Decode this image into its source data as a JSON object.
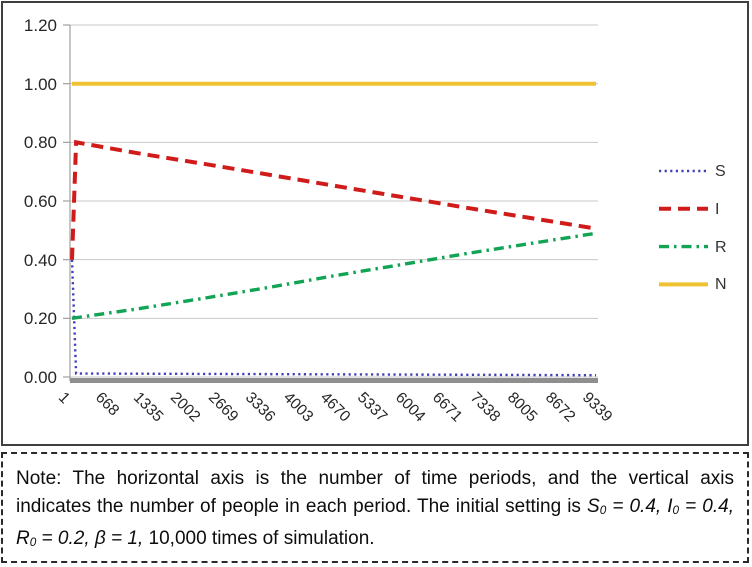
{
  "chart_data": {
    "type": "line",
    "title": "",
    "xlabel": "",
    "ylabel": "",
    "xlim": [
      1,
      10000
    ],
    "ylim": [
      0,
      1.2
    ],
    "grid": true,
    "legend_position": "right",
    "y_tick_labels": [
      "0.00",
      "0.20",
      "0.40",
      "0.60",
      "0.80",
      "1.00",
      "1.20"
    ],
    "x_tick_labels": [
      "1",
      "668",
      "1335",
      "2002",
      "2669",
      "3336",
      "4003",
      "4670",
      "5337",
      "6004",
      "6671",
      "7338",
      "8005",
      "8672",
      "9339"
    ],
    "series": [
      {
        "name": "S",
        "color": "#4040BE",
        "style": "dotted",
        "points": [
          [
            1,
            0.4
          ],
          [
            80,
            0.012
          ],
          [
            10000,
            0.006
          ]
        ]
      },
      {
        "name": "I",
        "color": "#D01B1B",
        "style": "dashed",
        "points": [
          [
            1,
            0.4
          ],
          [
            80,
            0.8
          ],
          [
            1250,
            0.763
          ],
          [
            2500,
            0.727
          ],
          [
            3750,
            0.69
          ],
          [
            5000,
            0.652
          ],
          [
            6250,
            0.615
          ],
          [
            7500,
            0.578
          ],
          [
            8750,
            0.542
          ],
          [
            10000,
            0.506
          ]
        ]
      },
      {
        "name": "R",
        "color": "#12A455",
        "style": "dash-dot",
        "points": [
          [
            1,
            0.2
          ],
          [
            1250,
            0.232
          ],
          [
            2500,
            0.268
          ],
          [
            3750,
            0.305
          ],
          [
            5000,
            0.345
          ],
          [
            6250,
            0.382
          ],
          [
            7500,
            0.42
          ],
          [
            8750,
            0.455
          ],
          [
            10000,
            0.49
          ]
        ]
      },
      {
        "name": "N",
        "color": "#EFC231",
        "style": "solid",
        "points": [
          [
            1,
            1.0
          ],
          [
            10000,
            1.0
          ]
        ]
      }
    ],
    "colors": {
      "gridline": "#C8C8C8",
      "axis": "#A0A0A0",
      "baseline_bar": "#8F8F8F",
      "tick_label": "#262626"
    }
  },
  "note": {
    "s1": "Note: The horizontal axis is the number of time periods, and the vertical axis indicates the number of people in each period. The initial setting is ",
    "s2": "S",
    "s3": "0",
    "s4": " = 0.4, ",
    "s5": "I",
    "s6": "0",
    "s7": " = 0.4, ",
    "s8": "R",
    "s9": "0",
    "s10": " = 0.2, β = 1,",
    "s11": " 10,000 times of simulation."
  }
}
